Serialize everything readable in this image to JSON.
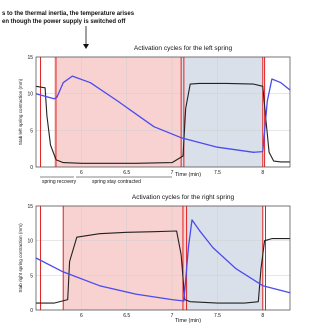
{
  "annotation": {
    "line1": "s to the thermal inertia, the temperature arises",
    "line2": "en though the power supply is switched off",
    "spring_recovery": "spring recovery",
    "spring_stay_contracted": "spring stay contracted"
  },
  "colors": {
    "heat_phase": "#f7c9c9",
    "cool_phase": "#d3dbe6",
    "contraction_curve": "#222222",
    "temperature_curve": "#4b4bf0",
    "supply_marker": "#e02020",
    "grid": "#cfcfcf"
  },
  "chart_data": [
    {
      "type": "line",
      "title": "Activation cycles for the left spring",
      "xlabel": "Time (min)",
      "ylabel": "Stab left spring contraction (mm)",
      "xlim": [
        5.5,
        8.3
      ],
      "ylim": [
        0,
        15
      ],
      "xticks": [
        "6",
        "6.5",
        "7",
        "7.5",
        "8"
      ],
      "yticks": [
        "0",
        "5",
        "10",
        "15"
      ],
      "grid": true,
      "shaded_regions": [
        {
          "phase": "heating",
          "x0": 5.7,
          "x1": 7.1
        },
        {
          "phase": "cooling",
          "x0": 7.1,
          "x1": 8.0
        }
      ],
      "series": [
        {
          "role": "contraction",
          "color": "#222222",
          "x": [
            5.5,
            5.6,
            5.62,
            5.66,
            5.72,
            5.8,
            6.0,
            6.3,
            6.6,
            7.0,
            7.12,
            7.15,
            7.2,
            7.3,
            7.6,
            7.9,
            8.0,
            8.03,
            8.07,
            8.12,
            8.2,
            8.3
          ],
          "y": [
            11.0,
            10.8,
            7.0,
            3.0,
            1.0,
            0.6,
            0.5,
            0.5,
            0.5,
            0.6,
            1.5,
            8.0,
            11.3,
            11.4,
            11.4,
            11.3,
            11.0,
            7.0,
            2.0,
            0.8,
            0.7,
            0.7
          ]
        },
        {
          "role": "temperature",
          "color": "#4b4bf0",
          "x": [
            5.5,
            5.7,
            5.73,
            5.8,
            5.9,
            6.1,
            6.4,
            6.8,
            7.1,
            7.5,
            7.9,
            8.0,
            8.05,
            8.1,
            8.2,
            8.3
          ],
          "y": [
            10.0,
            9.3,
            9.5,
            11.5,
            12.4,
            11.5,
            9.0,
            5.5,
            4.0,
            2.7,
            2.0,
            2.1,
            9.0,
            12.0,
            11.5,
            10.5
          ]
        }
      ],
      "markers": [
        {
          "color": "#e02020",
          "x": [
            5.55,
            5.72,
            7.1,
            7.13,
            8.0,
            8.02
          ]
        }
      ]
    },
    {
      "type": "line",
      "title": "Activation cycles for the right spring",
      "xlabel": "Time (min)",
      "ylabel": "Stab right spring contraction (mm)",
      "xlim": [
        5.5,
        8.3
      ],
      "ylim": [
        0,
        15
      ],
      "xticks": [
        "6",
        "6.5",
        "7",
        "7.5",
        "8"
      ],
      "yticks": [
        "0",
        "5",
        "10",
        "15"
      ],
      "grid": true,
      "shaded_regions": [
        {
          "phase": "heating",
          "x0": 5.8,
          "x1": 7.15
        },
        {
          "phase": "cooling",
          "x0": 7.15,
          "x1": 8.0
        }
      ],
      "series": [
        {
          "role": "contraction",
          "color": "#222222",
          "x": [
            5.5,
            5.7,
            5.85,
            5.87,
            5.95,
            6.2,
            6.5,
            6.8,
            7.05,
            7.1,
            7.14,
            7.2,
            7.5,
            7.8,
            7.95,
            7.98,
            8.02,
            8.1,
            8.3
          ],
          "y": [
            1.0,
            1.0,
            1.5,
            7.0,
            10.5,
            11.0,
            11.2,
            11.3,
            11.4,
            8.0,
            1.5,
            1.2,
            1.0,
            1.0,
            1.2,
            6.0,
            10.0,
            10.3,
            10.3
          ]
        },
        {
          "role": "temperature",
          "color": "#4b4bf0",
          "x": [
            5.5,
            5.8,
            6.2,
            6.6,
            7.0,
            7.13,
            7.18,
            7.22,
            7.3,
            7.45,
            7.7,
            8.0,
            8.3
          ],
          "y": [
            7.5,
            5.5,
            3.5,
            2.3,
            1.5,
            1.3,
            9.0,
            13.0,
            11.5,
            9.0,
            6.0,
            3.5,
            2.5
          ]
        }
      ],
      "markers": [
        {
          "color": "#e02020",
          "x": [
            5.55,
            5.8,
            7.12,
            7.16,
            8.0,
            8.03
          ]
        }
      ]
    }
  ]
}
